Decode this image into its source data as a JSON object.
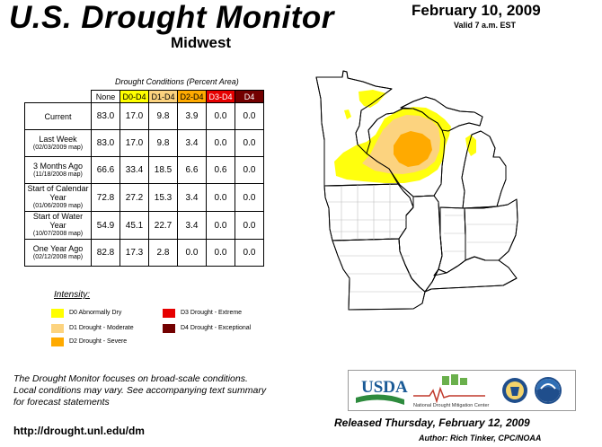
{
  "header": {
    "title": "U.S. Drought Monitor",
    "region": "Midwest",
    "date": "February 10, 2009",
    "valid": "Valid 7 a.m. EST"
  },
  "table": {
    "caption": "Drought Conditions (Percent Area)",
    "columns": [
      {
        "label": "None",
        "color": "#ffffff"
      },
      {
        "label": "D0-D4",
        "color": "#ffff00"
      },
      {
        "label": "D1-D4",
        "color": "#fcd37f"
      },
      {
        "label": "D2-D4",
        "color": "#ffaa00"
      },
      {
        "label": "D3-D4",
        "color": "#e60000"
      },
      {
        "label": "D4",
        "color": "#730000"
      }
    ],
    "rows": [
      {
        "label": "Current",
        "sub": "",
        "values": [
          "83.0",
          "17.0",
          "9.8",
          "3.9",
          "0.0",
          "0.0"
        ]
      },
      {
        "label": "Last Week",
        "sub": "(02/03/2009 map)",
        "values": [
          "83.0",
          "17.0",
          "9.8",
          "3.4",
          "0.0",
          "0.0"
        ]
      },
      {
        "label": "3 Months Ago",
        "sub": "(11/18/2008 map)",
        "values": [
          "66.6",
          "33.4",
          "18.5",
          "6.6",
          "0.6",
          "0.0"
        ]
      },
      {
        "label": "Start of Calendar Year",
        "sub": "(01/06/2009 map)",
        "values": [
          "72.8",
          "27.2",
          "15.3",
          "3.4",
          "0.0",
          "0.0"
        ]
      },
      {
        "label": "Start of Water Year",
        "sub": "(10/07/2008 map)",
        "values": [
          "54.9",
          "45.1",
          "22.7",
          "3.4",
          "0.0",
          "0.0"
        ]
      },
      {
        "label": "One Year Ago",
        "sub": "(02/12/2008 map)",
        "values": [
          "82.8",
          "17.3",
          "2.8",
          "0.0",
          "0.0",
          "0.0"
        ]
      }
    ]
  },
  "legend": {
    "title": "Intensity:",
    "items": [
      {
        "label": "D0 Abnormally Dry",
        "color": "#ffff00"
      },
      {
        "label": "D1 Drought - Moderate",
        "color": "#fcd37f"
      },
      {
        "label": "D2 Drought - Severe",
        "color": "#ffaa00"
      },
      {
        "label": "D3 Drought - Extreme",
        "color": "#e60000"
      },
      {
        "label": "D4 Drought - Exceptional",
        "color": "#730000"
      }
    ]
  },
  "footer": {
    "note_line1": "The Drought Monitor focuses on broad-scale conditions.",
    "note_line2": "Local conditions may vary. See accompanying text summary",
    "note_line3": "for forecast statements",
    "url": "http://drought.unl.edu/dm",
    "released": "Released Thursday, February 12, 2009",
    "author": "Author: Rich Tinker, CPC/NOAA"
  },
  "logos": {
    "usda": "USDA",
    "ndmc": "National Drought Mitigation Center"
  }
}
